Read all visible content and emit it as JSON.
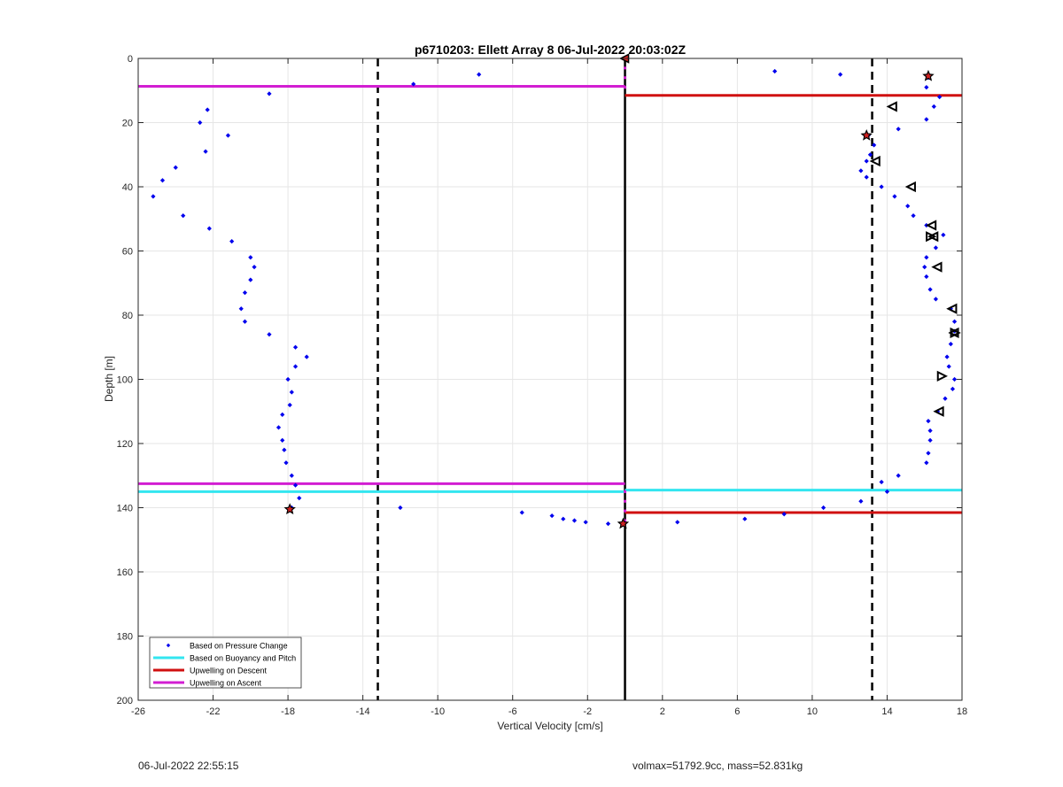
{
  "chart_data": {
    "type": "scatter",
    "title": "p6710203: Ellett Array 8 06-Jul-2022 20:03:02Z",
    "xlabel": "Vertical Velocity [cm/s]",
    "ylabel": "Depth [m]",
    "xlim": [
      -26,
      18
    ],
    "ylim": [
      0,
      200
    ],
    "y_reversed": true,
    "grid": true,
    "legend_placement": "bottom-left",
    "xticks": [
      -26,
      -22,
      -18,
      -14,
      -10,
      -6,
      -2,
      2,
      6,
      10,
      14,
      18
    ],
    "yticks": [
      0,
      20,
      40,
      60,
      80,
      100,
      120,
      140,
      160,
      180,
      200
    ],
    "colors": {
      "pressure": "#0000ee",
      "buoyancy": "#33e6f0",
      "descent": "#d01010",
      "ascent": "#d21ed2",
      "marker_fill": "#d02020",
      "axis": "#000000",
      "grid": "#e6e6e6"
    },
    "legend": [
      {
        "label": "Based on Pressure Change",
        "kind": "dot",
        "color_key": "pressure"
      },
      {
        "label": "Based on Buoyancy and Pitch",
        "kind": "line",
        "color_key": "buoyancy"
      },
      {
        "label": "Upwelling on Descent",
        "kind": "line",
        "color_key": "descent"
      },
      {
        "label": "Upwelling on Ascent",
        "kind": "line",
        "color_key": "ascent"
      }
    ],
    "reference_lines": {
      "vertical_solid_x": 0,
      "vertical_dashed_x": [
        -13.2,
        13.2
      ]
    },
    "series": [
      {
        "name": "Based on Pressure Change",
        "points": [
          [
            -11.3,
            8
          ],
          [
            -7.8,
            5
          ],
          [
            -19.0,
            11
          ],
          [
            -22.3,
            16
          ],
          [
            -22.7,
            20
          ],
          [
            -21.2,
            24
          ],
          [
            -22.4,
            29
          ],
          [
            -24.0,
            34
          ],
          [
            -24.7,
            38
          ],
          [
            -25.2,
            43
          ],
          [
            -23.6,
            49
          ],
          [
            -22.2,
            53
          ],
          [
            -21.0,
            57
          ],
          [
            -20.0,
            62
          ],
          [
            -19.8,
            65
          ],
          [
            -20.0,
            69
          ],
          [
            -20.3,
            73
          ],
          [
            -20.5,
            78
          ],
          [
            -20.3,
            82
          ],
          [
            -19.0,
            86
          ],
          [
            -17.6,
            90
          ],
          [
            -17.0,
            93
          ],
          [
            -17.6,
            96
          ],
          [
            -18.0,
            100
          ],
          [
            -17.8,
            104
          ],
          [
            -17.9,
            108
          ],
          [
            -18.3,
            111
          ],
          [
            -18.5,
            115
          ],
          [
            -18.3,
            119
          ],
          [
            -18.2,
            122
          ],
          [
            -18.1,
            126
          ],
          [
            -17.8,
            130
          ],
          [
            -17.6,
            133
          ],
          [
            -17.4,
            137
          ],
          [
            -17.8,
            140
          ],
          [
            -12.0,
            140
          ],
          [
            -5.5,
            141.5
          ],
          [
            -3.9,
            142.5
          ],
          [
            -3.3,
            143.5
          ],
          [
            -2.7,
            144
          ],
          [
            -2.1,
            144.5
          ],
          [
            -0.9,
            145
          ],
          [
            -0.1,
            144.8
          ],
          [
            2.8,
            144.5
          ],
          [
            6.4,
            143.5
          ],
          [
            8.5,
            142
          ],
          [
            10.6,
            140
          ],
          [
            12.6,
            138
          ],
          [
            14.0,
            135
          ],
          [
            13.7,
            132
          ],
          [
            14.6,
            130
          ],
          [
            16.1,
            126
          ],
          [
            16.2,
            123
          ],
          [
            16.3,
            119
          ],
          [
            16.3,
            116
          ],
          [
            16.2,
            113
          ],
          [
            16.7,
            110
          ],
          [
            17.1,
            106
          ],
          [
            17.5,
            103
          ],
          [
            17.6,
            100
          ],
          [
            17.3,
            96
          ],
          [
            17.2,
            93
          ],
          [
            17.4,
            89
          ],
          [
            17.6,
            85
          ],
          [
            17.6,
            82
          ],
          [
            17.4,
            78
          ],
          [
            16.6,
            75
          ],
          [
            16.3,
            72
          ],
          [
            16.1,
            68
          ],
          [
            16.0,
            65
          ],
          [
            16.1,
            62
          ],
          [
            16.6,
            59
          ],
          [
            17.0,
            55
          ],
          [
            16.1,
            52
          ],
          [
            15.4,
            49
          ],
          [
            15.1,
            46
          ],
          [
            14.4,
            43
          ],
          [
            13.7,
            40
          ],
          [
            12.9,
            37
          ],
          [
            12.6,
            35
          ],
          [
            12.9,
            32
          ],
          [
            13.1,
            30
          ],
          [
            13.3,
            27
          ],
          [
            13.0,
            24
          ],
          [
            14.6,
            22
          ],
          [
            16.1,
            19
          ],
          [
            16.5,
            15
          ],
          [
            16.8,
            12
          ],
          [
            16.1,
            9
          ],
          [
            16.2,
            6
          ],
          [
            11.5,
            5
          ],
          [
            8.0,
            4
          ]
        ]
      },
      {
        "name": "Upwelling on Descent",
        "markers_triangle_left": [
          [
            14.3,
            15
          ],
          [
            13.4,
            32
          ],
          [
            15.3,
            40
          ],
          [
            16.4,
            52
          ],
          [
            16.5,
            55.5
          ],
          [
            16.7,
            65
          ],
          [
            17.5,
            78
          ],
          [
            17.6,
            85.5
          ],
          [
            16.8,
            110
          ]
        ],
        "markers_triangle_right": [
          [
            16.3,
            55.5
          ],
          [
            17.6,
            85.5
          ],
          [
            16.9,
            99
          ]
        ],
        "markers_star": [
          [
            16.2,
            5.5
          ],
          [
            12.9,
            24
          ]
        ]
      },
      {
        "name": "Upwelling on Ascent",
        "markers_star": [
          [
            -17.9,
            140.5
          ],
          [
            -0.1,
            145
          ]
        ],
        "markers_triangle_left": [
          [
            0.0,
            0
          ]
        ],
        "markers_small_ascent_x": 0.0,
        "markers_small_ascent_y": [
          3,
          6,
          9,
          135,
          138,
          141,
          144
        ]
      }
    ],
    "hlines": [
      {
        "series": "Upwelling on Ascent",
        "y": 8.7,
        "x_from": -26,
        "x_to": 0
      },
      {
        "series": "Upwelling on Descent",
        "y": 11.5,
        "x_from": 0,
        "x_to": 18
      },
      {
        "series": "Upwelling on Ascent",
        "y": 132.5,
        "x_from": -26,
        "x_to": 0
      },
      {
        "series": "Based on Buoyancy and Pitch",
        "y": 135,
        "x_from": -26,
        "x_to": 0
      },
      {
        "series": "Based on Buoyancy and Pitch",
        "y": 134.5,
        "x_from": 0,
        "x_to": 18
      },
      {
        "series": "Upwelling on Descent",
        "y": 141.5,
        "x_from": 0,
        "x_to": 18
      }
    ]
  },
  "footer": {
    "left": "06-Jul-2022 22:55:15",
    "right": "volmax=51792.9cc, mass=52.831kg"
  }
}
